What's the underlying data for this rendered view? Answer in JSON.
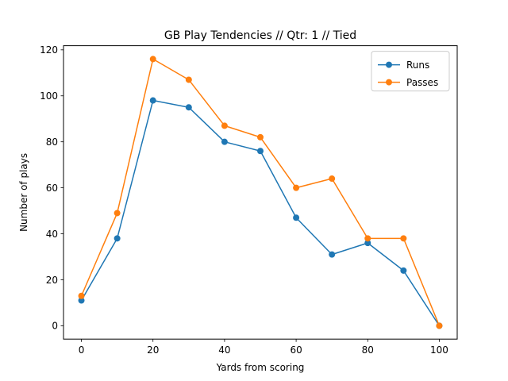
{
  "chart_data": {
    "type": "line",
    "title": "GB Play Tendencies // Qtr: 1 // Tied",
    "xlabel": "Yards from scoring",
    "ylabel": "Number of plays",
    "x": [
      0,
      10,
      20,
      30,
      40,
      50,
      60,
      70,
      80,
      90,
      100
    ],
    "xlim": [
      -5,
      105
    ],
    "ylim": [
      -5.8,
      121.8
    ],
    "xticks": [
      0,
      20,
      40,
      60,
      80,
      100
    ],
    "yticks": [
      0,
      20,
      40,
      60,
      80,
      100,
      120
    ],
    "grid": false,
    "legend_position": "top-right",
    "series": [
      {
        "name": "Runs",
        "color": "#1f77b4",
        "marker": "circle",
        "values": [
          11,
          38,
          98,
          95,
          80,
          76,
          47,
          31,
          36,
          24,
          0
        ]
      },
      {
        "name": "Passes",
        "color": "#ff7f0e",
        "marker": "circle",
        "values": [
          13,
          49,
          116,
          107,
          87,
          82,
          60,
          64,
          38,
          38,
          0
        ]
      }
    ]
  }
}
